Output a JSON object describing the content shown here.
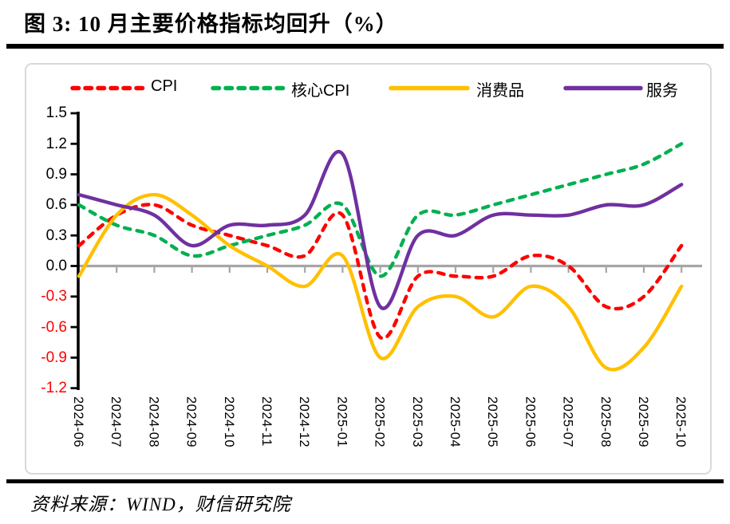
{
  "title": "图 3:  10 月主要价格指标均回升（%）",
  "source": "资料来源：WIND，财信研究院",
  "chart_data": {
    "type": "line",
    "title": "图 3:  10 月主要价格指标均回升（%）",
    "unit": "%",
    "categories": [
      "2024-06",
      "2024-07",
      "2024-08",
      "2024-09",
      "2024-10",
      "2024-11",
      "2024-12",
      "2025-01",
      "2025-02",
      "2025-03",
      "2025-04",
      "2025-05",
      "2025-06",
      "2025-07",
      "2025-08",
      "2025-09",
      "2025-10"
    ],
    "series": [
      {
        "name": "CPI",
        "color": "#FF0000",
        "dash": true,
        "values": [
          0.2,
          0.5,
          0.6,
          0.4,
          0.3,
          0.2,
          0.1,
          0.5,
          -0.7,
          -0.1,
          -0.1,
          -0.1,
          0.1,
          0.0,
          -0.4,
          -0.3,
          0.2
        ]
      },
      {
        "name": "核心CPI",
        "color": "#00B050",
        "dash": true,
        "values": [
          0.6,
          0.4,
          0.3,
          0.1,
          0.2,
          0.3,
          0.4,
          0.6,
          -0.1,
          0.5,
          0.5,
          0.6,
          0.7,
          0.8,
          0.9,
          1.0,
          1.2
        ]
      },
      {
        "name": "消费品",
        "color": "#FFC000",
        "dash": false,
        "values": [
          -0.1,
          0.5,
          0.7,
          0.5,
          0.2,
          0.0,
          -0.2,
          0.1,
          -0.9,
          -0.4,
          -0.3,
          -0.5,
          -0.2,
          -0.4,
          -1.0,
          -0.8,
          -0.2
        ]
      },
      {
        "name": "服务",
        "color": "#7030A0",
        "dash": false,
        "values": [
          0.7,
          0.6,
          0.5,
          0.2,
          0.4,
          0.4,
          0.5,
          1.1,
          -0.4,
          0.3,
          0.3,
          0.5,
          0.5,
          0.5,
          0.6,
          0.6,
          0.8
        ]
      }
    ],
    "ylim": [
      -1.2,
      1.5
    ],
    "ytick_step": 0.3,
    "ytick_labels": [
      "1.5",
      "1.2",
      "0.9",
      "0.6",
      "0.3",
      "0.0",
      "-0.3",
      "-0.6",
      "-0.9",
      "-1.2"
    ],
    "axis_color": "#000000",
    "negative_label_color": "#FF0000",
    "positive_label_color": "#000000",
    "zero_line_color": "#A6A6A6",
    "legend_position": "top",
    "grid": false
  }
}
